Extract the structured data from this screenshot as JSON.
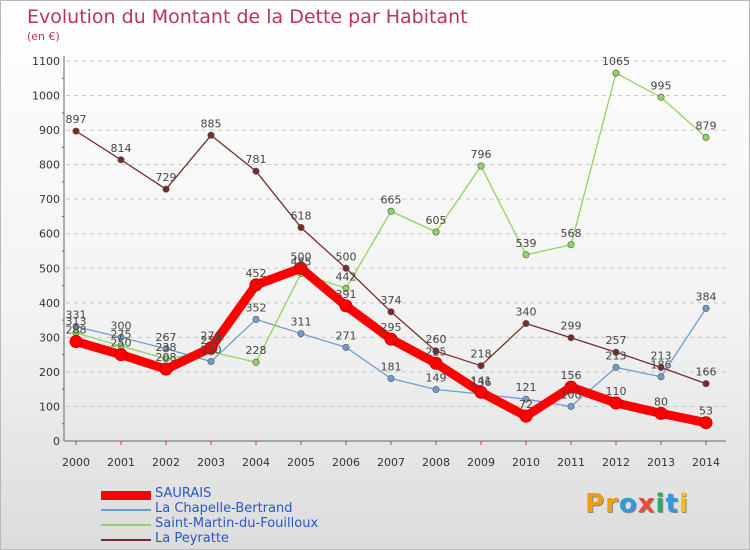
{
  "title": "Evolution du Montant de la Dette par Habitant",
  "subtitle": "(en €)",
  "logo": {
    "text": "Proxiti",
    "colors": [
      "#f39c12",
      "#f39c12",
      "#3498db",
      "#e74c3c",
      "#27ae60",
      "#3498db",
      "#f1c40f"
    ]
  },
  "chart_data": {
    "type": "line",
    "x": [
      "2000",
      "2001",
      "2002",
      "2003",
      "2004",
      "2005",
      "2006",
      "2007",
      "2008",
      "2009",
      "2010",
      "2011",
      "2012",
      "2013",
      "2014"
    ],
    "ylim": [
      0,
      1100
    ],
    "yticks": [
      "0",
      "100",
      "200",
      "300",
      "400",
      "500",
      "600",
      "700",
      "800",
      "900",
      "1000",
      "1100"
    ],
    "grid": true,
    "legend_position": "bottom-left",
    "series": [
      {
        "name": "SAURAIS",
        "color": "#ff0000",
        "width": 9,
        "values": [
          288,
          250,
          208,
          270,
          452,
          500,
          391,
          295,
          225,
          141,
          72,
          156,
          110,
          80,
          53
        ]
      },
      {
        "name": "La Chapelle-Bertrand",
        "color": "#6f9ccf",
        "width": 1.3,
        "values": [
          331,
          300,
          267,
          230,
          352,
          311,
          271,
          181,
          149,
          136,
          121,
          100,
          213,
          186,
          384
        ]
      },
      {
        "name": "Saint-Martin-du-Fouilloux",
        "color": "#8fd461",
        "width": 1.3,
        "values": [
          313,
          275,
          238,
          258,
          228,
          485,
          442,
          665,
          605,
          796,
          539,
          568,
          1065,
          995,
          879
        ]
      },
      {
        "name": "La Peyratte",
        "color": "#7a2a2a",
        "width": 1.3,
        "values": [
          897,
          814,
          729,
          885,
          781,
          618,
          500,
          374,
          260,
          218,
          340,
          299,
          257,
          213,
          166
        ]
      }
    ]
  }
}
